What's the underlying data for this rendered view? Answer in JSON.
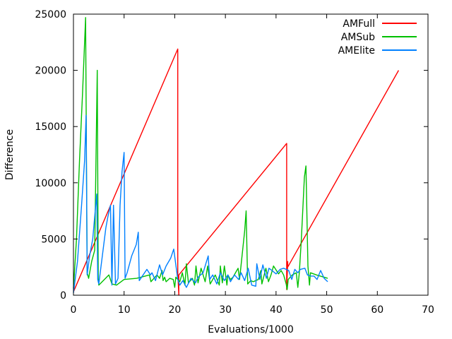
{
  "chart_data": {
    "type": "line",
    "title": "",
    "xlabel": "Evaluations/1000",
    "ylabel": "Difference",
    "xlim": [
      0,
      70
    ],
    "ylim": [
      0,
      25000
    ],
    "xticks": [
      0,
      10,
      20,
      30,
      40,
      50,
      60,
      70
    ],
    "yticks": [
      0,
      5000,
      10000,
      15000,
      20000,
      25000
    ],
    "grid": false,
    "legend_position": "top-right",
    "series": [
      {
        "name": "AMFull",
        "color": "#ff0000",
        "x": [
          0,
          20.6,
          20.6,
          20.8,
          20.8,
          42.1,
          42.1,
          42.3,
          42.3,
          64.2
        ],
        "y": [
          300,
          21900,
          2000,
          0,
          1800,
          13500,
          500,
          3000,
          2500,
          20000
        ]
      },
      {
        "name": "AMSub",
        "color": "#00c000",
        "x": [
          0,
          0.6,
          1.2,
          1.8,
          2.4,
          2.7,
          3.0,
          3.6,
          4.2,
          4.7,
          4.9,
          5.0,
          7.0,
          7.6,
          8.5,
          10.0,
          12.5,
          15.0,
          15.3,
          16.5,
          17.0,
          17.5,
          17.7,
          18.0,
          18.3,
          19.0,
          19.7,
          20.0,
          20.2,
          21.0,
          21.5,
          22.0,
          22.3,
          22.7,
          23.5,
          23.9,
          24.2,
          24.6,
          25.2,
          26.0,
          26.5,
          27.0,
          28.0,
          28.8,
          29.0,
          29.4,
          29.8,
          30.3,
          30.5,
          31.0,
          31.5,
          32.5,
          32.8,
          33.8,
          34.1,
          34.4,
          35.0,
          35.5,
          36.5,
          37.0,
          37.2,
          38.0,
          38.5,
          39.0,
          39.5,
          40.5,
          41.0,
          41.5,
          42.0,
          42.2,
          42.4,
          43.2,
          44.0,
          44.3,
          44.6,
          45.0,
          45.6,
          45.9,
          46.3,
          46.6,
          46.8,
          48.0,
          50.2
        ],
        "y": [
          600,
          5000,
          12000,
          18000,
          24700,
          2000,
          1500,
          3000,
          4000,
          20000,
          1500,
          900,
          1800,
          1000,
          900,
          1400,
          1500,
          1800,
          1200,
          1800,
          1500,
          2200,
          1300,
          1600,
          1200,
          1500,
          1400,
          700,
          1600,
          1200,
          2000,
          900,
          2800,
          1100,
          1500,
          900,
          2600,
          1100,
          2400,
          1200,
          2600,
          1000,
          1800,
          900,
          2600,
          1100,
          2600,
          900,
          1800,
          1400,
          1600,
          2400,
          1400,
          5700,
          7500,
          1000,
          1300,
          1200,
          1400,
          2200,
          1000,
          2400,
          1200,
          1800,
          2600,
          1900,
          2200,
          1800,
          1000,
          500,
          1400,
          1800,
          2000,
          700,
          2000,
          5000,
          10500,
          11500,
          2600,
          900,
          2000,
          1800,
          1500
        ]
      },
      {
        "name": "AMElite",
        "color": "#0080ff",
        "x": [
          0,
          0.8,
          1.6,
          2.2,
          2.5,
          2.7,
          3.2,
          3.8,
          4.2,
          4.6,
          4.8,
          5.0,
          6.4,
          6.8,
          7.3,
          7.6,
          7.9,
          8.3,
          8.8,
          9.2,
          9.6,
          10.0,
          10.2,
          10.6,
          11.5,
          12.4,
          12.8,
          13.0,
          14.5,
          15.2,
          15.5,
          16.2,
          17.0,
          17.6,
          18.3,
          19.2,
          19.8,
          20.6,
          21.0,
          21.6,
          22.3,
          23.2,
          24.1,
          24.6,
          25.6,
          26.6,
          26.9,
          27.5,
          28.3,
          29.0,
          29.8,
          30.5,
          31.0,
          31.8,
          32.6,
          33.1,
          33.8,
          34.5,
          35.2,
          36.0,
          36.2,
          36.8,
          37.4,
          38.1,
          38.6,
          39.2,
          40.0,
          40.8,
          41.5,
          42.0,
          42.5,
          43.1,
          43.7,
          44.3,
          44.8,
          45.7,
          46.2,
          46.8,
          47.5,
          48.1,
          48.8,
          49.5,
          50.2
        ],
        "y": [
          200,
          3000,
          8000,
          12000,
          16000,
          1800,
          3500,
          5000,
          7000,
          9000,
          1400,
          1000,
          6000,
          7000,
          8000,
          900,
          8000,
          1000,
          1500,
          8000,
          11000,
          12700,
          1500,
          2000,
          3500,
          4500,
          5600,
          1300,
          2300,
          1800,
          2000,
          1300,
          2700,
          1800,
          2600,
          3300,
          4100,
          1400,
          900,
          1300,
          700,
          1500,
          1100,
          1600,
          2000,
          3500,
          1400,
          1800,
          1000,
          2000,
          1300,
          1800,
          1200,
          1800,
          1400,
          2000,
          1300,
          2400,
          900,
          800,
          2800,
          1400,
          2700,
          1500,
          2400,
          2200,
          1900,
          2300,
          2400,
          2300,
          2200,
          1400,
          2300,
          2000,
          2300,
          2400,
          1800,
          1700,
          1700,
          1400,
          2200,
          1500,
          1200
        ]
      }
    ]
  }
}
